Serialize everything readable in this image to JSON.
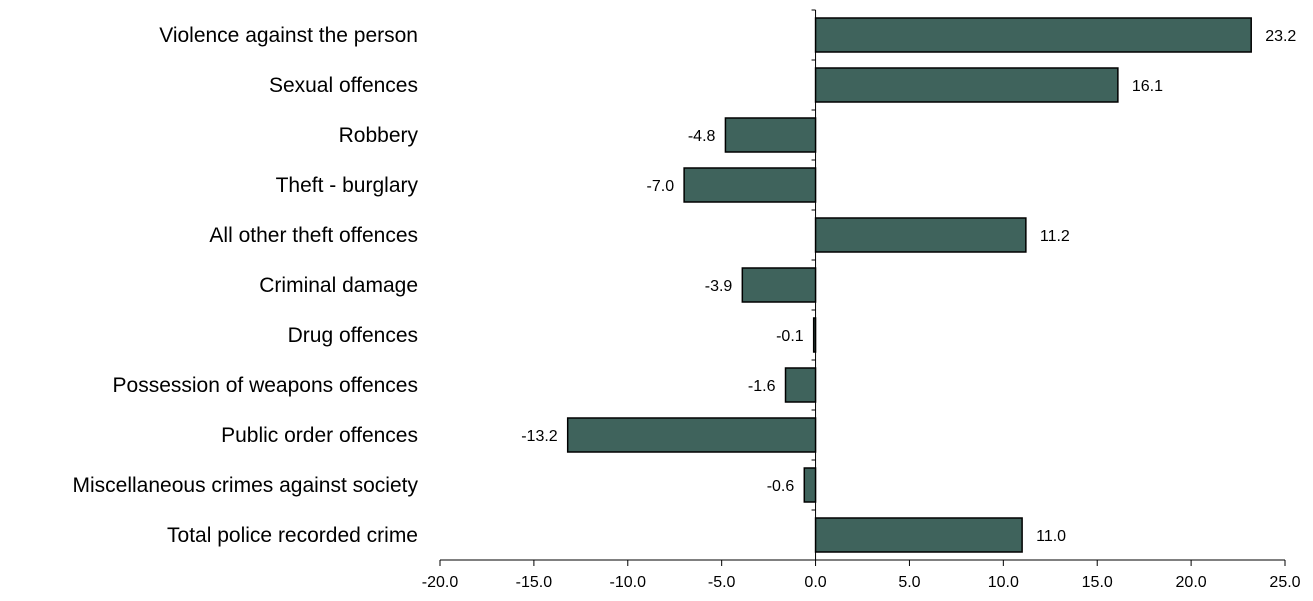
{
  "chart_data": {
    "type": "bar",
    "orientation": "horizontal",
    "title": "",
    "xlabel": "",
    "ylabel": "",
    "categories": [
      "Violence against the person",
      "Sexual offences",
      "Robbery",
      "Theft - burglary",
      "All other theft offences",
      "Criminal damage",
      "Drug offences",
      "Possession of weapons offences",
      "Public order offences",
      "Miscellaneous crimes against society",
      "Total police recorded crime"
    ],
    "values": [
      23.2,
      16.1,
      -4.8,
      -7.0,
      11.2,
      -3.9,
      -0.1,
      -1.6,
      -13.2,
      -0.6,
      11.0
    ],
    "value_labels": [
      "23.2",
      "16.1",
      "-4.8",
      "-7.0",
      "11.2",
      "-3.9",
      "-0.1",
      "-1.6",
      "-13.2",
      "-0.6",
      "11.0"
    ],
    "xlim": [
      -20,
      25
    ],
    "x_ticks": [
      -20,
      -15,
      -10,
      -5,
      0,
      5,
      10,
      15,
      20,
      25
    ],
    "x_tick_labels": [
      "-20.0",
      "-15.0",
      "-10.0",
      "-5.0",
      "0.0",
      "5.0",
      "10.0",
      "15.0",
      "20.0",
      "25.0"
    ],
    "grid": false,
    "legend": "none",
    "bar_color": "#3f635c",
    "bar_edge_color": "#000000"
  }
}
